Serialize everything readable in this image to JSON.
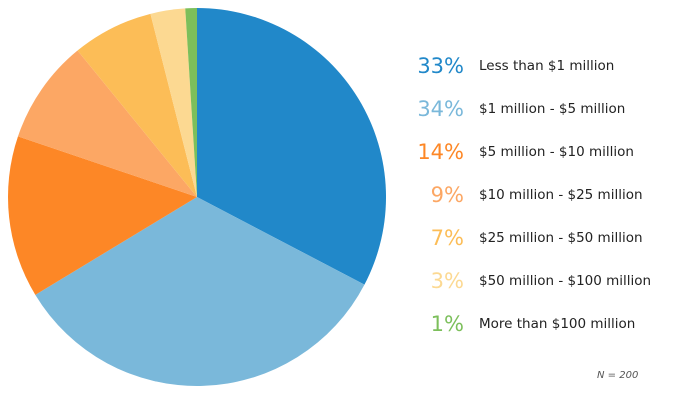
{
  "chart_data": {
    "type": "pie",
    "series": [
      {
        "values": [
          33,
          34,
          14,
          9,
          7,
          3,
          1
        ]
      }
    ],
    "categories": [
      "Less than $1 million",
      "$1 million - $5 million",
      "$5 million - $10 million",
      "$10 million - $25 million",
      "$25 million - $50 million",
      "$50 million - $100 million",
      "More than $100 million"
    ],
    "percent_labels": [
      "33%",
      "34%",
      "14%",
      "9%",
      "7%",
      "3%",
      "1%"
    ],
    "colors": [
      "#2188c9",
      "#7ab8da",
      "#fd8726",
      "#fca764",
      "#fcbd57",
      "#fcd992",
      "#7cbf5b"
    ],
    "legend_position": "right",
    "note": "N = 200"
  }
}
